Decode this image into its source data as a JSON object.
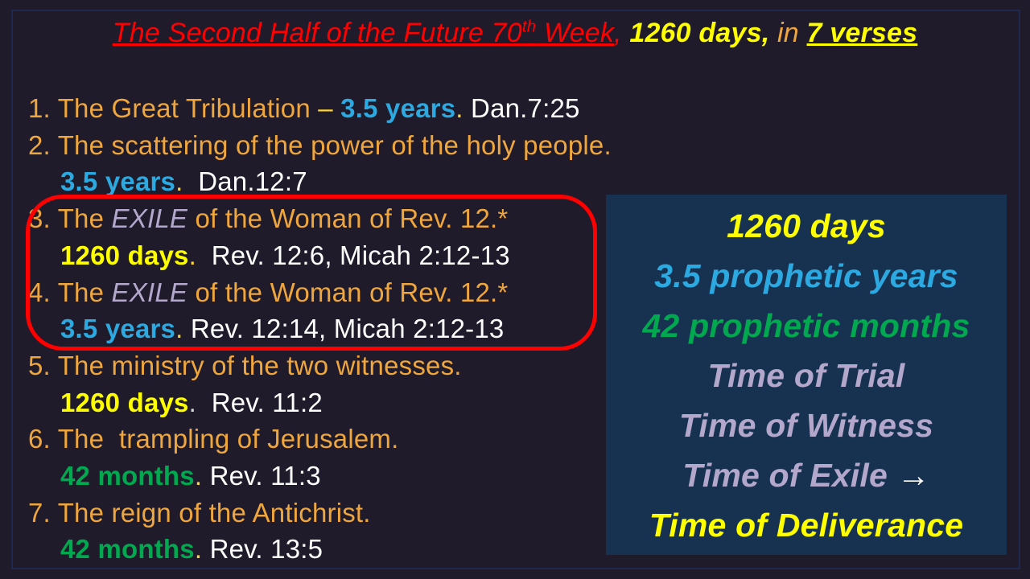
{
  "colors": {
    "red": "#FF0000",
    "orange": "#EFA63C",
    "yellow": "#FFFF00",
    "gold": "#FFD633",
    "blue": "#2BA9E0",
    "green": "#00A94F",
    "lavender": "#B3A8CC",
    "white": "#FFFFFF",
    "silver": "#D9D9D9"
  },
  "slide": {
    "background": "#1F1B2A",
    "frame_color": "#1D2A4D",
    "title": {
      "segments": [
        {
          "t": "The Second Half of the Future 70",
          "c": "red",
          "ug": 1
        },
        {
          "t": "th",
          "c": "red",
          "ug": 1,
          "sup": 1
        },
        {
          "t": " Week",
          "c": "red",
          "ug": 1
        },
        {
          "t": ", ",
          "c": "red"
        },
        {
          "t": "1260 days,",
          "c": "yellow",
          "b": 1
        },
        {
          "t": " in ",
          "c": "orange"
        },
        {
          "t": "7 verses",
          "c": "yellow",
          "b": 1,
          "u": 1
        }
      ]
    },
    "list": {
      "items": [
        {
          "lines": [
            {
              "indent": false,
              "segments": [
                {
                  "t": "1. The Great Tribulation ",
                  "c": "orange"
                },
                {
                  "t": "– ",
                  "c": "gold"
                },
                {
                  "t": "3.5 years",
                  "c": "blue",
                  "b": 1
                },
                {
                  "t": ". ",
                  "c": "gold"
                },
                {
                  "t": "Dan.7:25",
                  "c": "white"
                }
              ]
            }
          ]
        },
        {
          "lines": [
            {
              "indent": false,
              "segments": [
                {
                  "t": "2. The scattering of the power of the holy people.",
                  "c": "orange"
                }
              ]
            },
            {
              "indent": true,
              "segments": [
                {
                  "t": "3.5 years",
                  "c": "blue",
                  "b": 1
                },
                {
                  "t": ".  ",
                  "c": "gold"
                },
                {
                  "t": "Dan.12:7",
                  "c": "white"
                }
              ]
            }
          ]
        },
        {
          "lines": [
            {
              "indent": false,
              "segments": [
                {
                  "t": "3. The ",
                  "c": "orange"
                },
                {
                  "t": "EXILE",
                  "c": "lavender",
                  "i": 1
                },
                {
                  "t": " of the Woman of Rev. 12.*",
                  "c": "orange"
                }
              ]
            },
            {
              "indent": true,
              "segments": [
                {
                  "t": "1260 days",
                  "c": "yellow",
                  "b": 1
                },
                {
                  "t": ".  ",
                  "c": "gold"
                },
                {
                  "t": "Rev. 12:6, Micah 2:12-13",
                  "c": "white"
                }
              ]
            }
          ]
        },
        {
          "lines": [
            {
              "indent": false,
              "segments": [
                {
                  "t": "4. The ",
                  "c": "orange"
                },
                {
                  "t": "EXILE",
                  "c": "lavender",
                  "i": 1
                },
                {
                  "t": " of the Woman of Rev. 12.*",
                  "c": "orange"
                }
              ]
            },
            {
              "indent": true,
              "segments": [
                {
                  "t": "3.5 years",
                  "c": "blue",
                  "b": 1
                },
                {
                  "t": ". ",
                  "c": "gold"
                },
                {
                  "t": "Rev. 12:14, Micah 2:12-13",
                  "c": "white"
                }
              ]
            }
          ]
        },
        {
          "lines": [
            {
              "indent": false,
              "segments": [
                {
                  "t": "5. The ministry of the two witnesses.",
                  "c": "orange"
                }
              ]
            },
            {
              "indent": true,
              "segments": [
                {
                  "t": "1260 days",
                  "c": "yellow",
                  "b": 1
                },
                {
                  "t": ".  ",
                  "c": "silver"
                },
                {
                  "t": "Rev. 11:2",
                  "c": "white"
                }
              ]
            }
          ]
        },
        {
          "lines": [
            {
              "indent": false,
              "segments": [
                {
                  "t": "6. The  trampling of Jerusalem.",
                  "c": "orange"
                }
              ]
            },
            {
              "indent": true,
              "segments": [
                {
                  "t": "42 months",
                  "c": "green",
                  "b": 1
                },
                {
                  "t": ". ",
                  "c": "gold"
                },
                {
                  "t": "Rev. 11:3",
                  "c": "white"
                }
              ]
            }
          ]
        },
        {
          "lines": [
            {
              "indent": false,
              "segments": [
                {
                  "t": "7. The reign of the Antichrist.",
                  "c": "orange"
                }
              ]
            },
            {
              "indent": true,
              "segments": [
                {
                  "t": "42 months",
                  "c": "green",
                  "b": 1
                },
                {
                  "t": ". ",
                  "c": "gold"
                },
                {
                  "t": "Rev. 13:5",
                  "c": "white"
                }
              ]
            }
          ]
        }
      ]
    },
    "highlight_oval": {
      "color": "#FF0000",
      "marks_items": "3-4"
    },
    "summary_box": {
      "background": "#173250",
      "lines": [
        {
          "segments": [
            {
              "t": "1260 days",
              "c": "yellow"
            }
          ]
        },
        {
          "segments": [
            {
              "t": "3.5 prophetic years",
              "c": "blue"
            }
          ]
        },
        {
          "segments": [
            {
              "t": "42 prophetic months",
              "c": "green"
            }
          ]
        },
        {
          "segments": [
            {
              "t": "Time of Trial",
              "c": "lavender"
            }
          ]
        },
        {
          "segments": [
            {
              "t": "Time of Witness",
              "c": "lavender"
            }
          ]
        },
        {
          "segments": [
            {
              "t": "Time of Exile ",
              "c": "lavender"
            },
            {
              "t": "→",
              "c": "white",
              "n": "right-arrow-icon"
            }
          ]
        },
        {
          "segments": [
            {
              "t": "Time of Deliverance",
              "c": "yellow"
            }
          ]
        }
      ]
    }
  }
}
